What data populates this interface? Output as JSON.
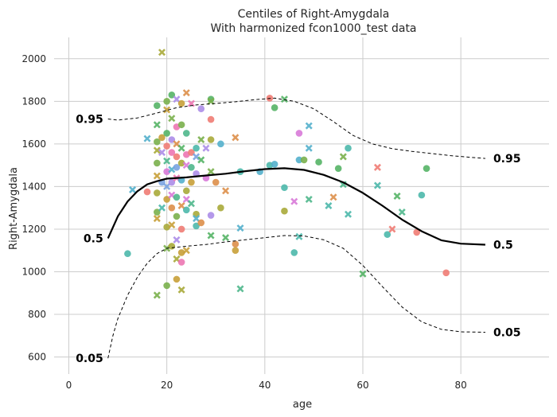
{
  "chart_data": {
    "type": "scatter",
    "title": "Centiles of Right-Amygdala",
    "subtitle": "With harmonized fcon1000_test data",
    "xlabel": "age",
    "ylabel": "Right-Amygdala",
    "xlim": [
      -3,
      98
    ],
    "ylim": [
      520,
      2100
    ],
    "xticks": [
      0,
      20,
      40,
      60,
      80
    ],
    "yticks": [
      600,
      800,
      1000,
      1200,
      1400,
      1600,
      1800,
      2000
    ],
    "grid": true,
    "centiles": [
      {
        "label": "0.95",
        "style": "dashed",
        "points": [
          [
            8,
            1717
          ],
          [
            10,
            1712
          ],
          [
            14,
            1722
          ],
          [
            18,
            1745
          ],
          [
            22,
            1770
          ],
          [
            26,
            1783
          ],
          [
            30,
            1790
          ],
          [
            34,
            1798
          ],
          [
            38,
            1808
          ],
          [
            42,
            1815
          ],
          [
            46,
            1800
          ],
          [
            50,
            1765
          ],
          [
            54,
            1705
          ],
          [
            58,
            1640
          ],
          [
            62,
            1600
          ],
          [
            66,
            1578
          ],
          [
            70,
            1565
          ],
          [
            74,
            1555
          ],
          [
            78,
            1545
          ],
          [
            82,
            1537
          ],
          [
            85,
            1532
          ]
        ]
      },
      {
        "label": "0.5",
        "style": "solid",
        "points": [
          [
            8,
            1157
          ],
          [
            10,
            1260
          ],
          [
            12,
            1330
          ],
          [
            14,
            1378
          ],
          [
            16,
            1410
          ],
          [
            18,
            1425
          ],
          [
            20,
            1437
          ],
          [
            24,
            1443
          ],
          [
            28,
            1452
          ],
          [
            32,
            1460
          ],
          [
            36,
            1472
          ],
          [
            40,
            1482
          ],
          [
            44,
            1486
          ],
          [
            48,
            1478
          ],
          [
            52,
            1455
          ],
          [
            56,
            1420
          ],
          [
            60,
            1370
          ],
          [
            64,
            1310
          ],
          [
            68,
            1245
          ],
          [
            72,
            1190
          ],
          [
            76,
            1148
          ],
          [
            80,
            1132
          ],
          [
            85,
            1127
          ]
        ]
      },
      {
        "label": "0.05",
        "style": "dashed",
        "points": [
          [
            8,
            594
          ],
          [
            9,
            700
          ],
          [
            10,
            780
          ],
          [
            12,
            890
          ],
          [
            14,
            975
          ],
          [
            16,
            1040
          ],
          [
            18,
            1085
          ],
          [
            20,
            1110
          ],
          [
            24,
            1120
          ],
          [
            28,
            1128
          ],
          [
            32,
            1140
          ],
          [
            36,
            1150
          ],
          [
            40,
            1160
          ],
          [
            44,
            1170
          ],
          [
            48,
            1168
          ],
          [
            52,
            1150
          ],
          [
            56,
            1110
          ],
          [
            60,
            1030
          ],
          [
            64,
            930
          ],
          [
            68,
            835
          ],
          [
            72,
            765
          ],
          [
            76,
            730
          ],
          [
            80,
            718
          ],
          [
            85,
            716
          ]
        ]
      }
    ],
    "scatter_colors": [
      "#f07c74",
      "#dd8f4a",
      "#c8a038",
      "#a8aa3a",
      "#7ab04c",
      "#55b466",
      "#4fb78c",
      "#4cb8ab",
      "#54b0cc",
      "#7aa3e0",
      "#ac8de8",
      "#d87ad8",
      "#ec77b3"
    ],
    "points": [
      {
        "x": 12,
        "y": 1085,
        "m": "o",
        "c": 7
      },
      {
        "x": 13,
        "y": 1385,
        "m": "x",
        "c": 8
      },
      {
        "x": 16,
        "y": 1625,
        "m": "x",
        "c": 8
      },
      {
        "x": 16,
        "y": 1375,
        "m": "o",
        "c": 0
      },
      {
        "x": 18,
        "y": 1780,
        "m": "o",
        "c": 5
      },
      {
        "x": 18,
        "y": 1690,
        "m": "x",
        "c": 5
      },
      {
        "x": 18,
        "y": 1610,
        "m": "o",
        "c": 4
      },
      {
        "x": 18,
        "y": 1570,
        "m": "x",
        "c": 3
      },
      {
        "x": 18,
        "y": 1510,
        "m": "o",
        "c": 4
      },
      {
        "x": 18,
        "y": 1450,
        "m": "x",
        "c": 2
      },
      {
        "x": 18,
        "y": 1370,
        "m": "o",
        "c": 3
      },
      {
        "x": 18,
        "y": 1280,
        "m": "o",
        "c": 4
      },
      {
        "x": 18,
        "y": 1250,
        "m": "x",
        "c": 2
      },
      {
        "x": 18,
        "y": 890,
        "m": "x",
        "c": 4
      },
      {
        "x": 19,
        "y": 2030,
        "m": "x",
        "c": 3
      },
      {
        "x": 19,
        "y": 1630,
        "m": "o",
        "c": 2
      },
      {
        "x": 19,
        "y": 1560,
        "m": "x",
        "c": 10
      },
      {
        "x": 19,
        "y": 1420,
        "m": "o",
        "c": 9
      },
      {
        "x": 19,
        "y": 1300,
        "m": "x",
        "c": 7
      },
      {
        "x": 20,
        "y": 1800,
        "m": "o",
        "c": 4
      },
      {
        "x": 20,
        "y": 1760,
        "m": "x",
        "c": 2
      },
      {
        "x": 20,
        "y": 1650,
        "m": "o",
        "c": 5
      },
      {
        "x": 20,
        "y": 1590,
        "m": "o",
        "c": 0
      },
      {
        "x": 20,
        "y": 1520,
        "m": "x",
        "c": 6
      },
      {
        "x": 20,
        "y": 1470,
        "m": "o",
        "c": 11
      },
      {
        "x": 20,
        "y": 1400,
        "m": "x",
        "c": 9
      },
      {
        "x": 20,
        "y": 1340,
        "m": "o",
        "c": 2
      },
      {
        "x": 20,
        "y": 1210,
        "m": "o",
        "c": 3
      },
      {
        "x": 20,
        "y": 1110,
        "m": "x",
        "c": 4
      },
      {
        "x": 20,
        "y": 935,
        "m": "o",
        "c": 4
      },
      {
        "x": 21,
        "y": 1830,
        "m": "o",
        "c": 5
      },
      {
        "x": 21,
        "y": 1720,
        "m": "x",
        "c": 4
      },
      {
        "x": 21,
        "y": 1620,
        "m": "o",
        "c": 10
      },
      {
        "x": 21,
        "y": 1560,
        "m": "o",
        "c": 12
      },
      {
        "x": 21,
        "y": 1480,
        "m": "x",
        "c": 8
      },
      {
        "x": 21,
        "y": 1420,
        "m": "o",
        "c": 10
      },
      {
        "x": 21,
        "y": 1360,
        "m": "x",
        "c": 11
      },
      {
        "x": 21,
        "y": 1300,
        "m": "o",
        "c": 1
      },
      {
        "x": 21,
        "y": 1220,
        "m": "x",
        "c": 2
      },
      {
        "x": 21,
        "y": 1120,
        "m": "o",
        "c": 3
      },
      {
        "x": 22,
        "y": 1810,
        "m": "x",
        "c": 10
      },
      {
        "x": 22,
        "y": 1680,
        "m": "o",
        "c": 12
      },
      {
        "x": 22,
        "y": 1600,
        "m": "x",
        "c": 1
      },
      {
        "x": 22,
        "y": 1540,
        "m": "o",
        "c": 0
      },
      {
        "x": 22,
        "y": 1490,
        "m": "o",
        "c": 9
      },
      {
        "x": 22,
        "y": 1440,
        "m": "x",
        "c": 12
      },
      {
        "x": 22,
        "y": 1350,
        "m": "o",
        "c": 6
      },
      {
        "x": 22,
        "y": 1260,
        "m": "o",
        "c": 4
      },
      {
        "x": 22,
        "y": 1150,
        "m": "x",
        "c": 10
      },
      {
        "x": 22,
        "y": 1060,
        "m": "x",
        "c": 3
      },
      {
        "x": 22,
        "y": 965,
        "m": "o",
        "c": 2
      },
      {
        "x": 23,
        "y": 1790,
        "m": "o",
        "c": 2
      },
      {
        "x": 23,
        "y": 1690,
        "m": "o",
        "c": 4
      },
      {
        "x": 23,
        "y": 1580,
        "m": "x",
        "c": 5
      },
      {
        "x": 23,
        "y": 1510,
        "m": "o",
        "c": 3
      },
      {
        "x": 23,
        "y": 1430,
        "m": "o",
        "c": 8
      },
      {
        "x": 23,
        "y": 1310,
        "m": "x",
        "c": 1
      },
      {
        "x": 23,
        "y": 1200,
        "m": "o",
        "c": 0
      },
      {
        "x": 23,
        "y": 1090,
        "m": "o",
        "c": 2
      },
      {
        "x": 23,
        "y": 1045,
        "m": "o",
        "c": 12
      },
      {
        "x": 23,
        "y": 915,
        "m": "x",
        "c": 3
      },
      {
        "x": 24,
        "y": 1840,
        "m": "x",
        "c": 1
      },
      {
        "x": 24,
        "y": 1650,
        "m": "o",
        "c": 6
      },
      {
        "x": 24,
        "y": 1550,
        "m": "o",
        "c": 12
      },
      {
        "x": 24,
        "y": 1500,
        "m": "x",
        "c": 11
      },
      {
        "x": 24,
        "y": 1380,
        "m": "o",
        "c": 3
      },
      {
        "x": 24,
        "y": 1340,
        "m": "x",
        "c": 11
      },
      {
        "x": 24,
        "y": 1290,
        "m": "o",
        "c": 7
      },
      {
        "x": 24,
        "y": 1100,
        "m": "x",
        "c": 2
      },
      {
        "x": 25,
        "y": 1790,
        "m": "x",
        "c": 12
      },
      {
        "x": 25,
        "y": 1560,
        "m": "o",
        "c": 0
      },
      {
        "x": 25,
        "y": 1490,
        "m": "o",
        "c": 6
      },
      {
        "x": 25,
        "y": 1420,
        "m": "o",
        "c": 2
      },
      {
        "x": 25,
        "y": 1320,
        "m": "x",
        "c": 6
      },
      {
        "x": 26,
        "y": 1580,
        "m": "o",
        "c": 7
      },
      {
        "x": 26,
        "y": 1540,
        "m": "x",
        "c": 9
      },
      {
        "x": 26,
        "y": 1460,
        "m": "o",
        "c": 10
      },
      {
        "x": 26,
        "y": 1270,
        "m": "o",
        "c": 3
      },
      {
        "x": 26,
        "y": 1215,
        "m": "o",
        "c": 7
      },
      {
        "x": 26,
        "y": 1250,
        "m": "x",
        "c": 8
      },
      {
        "x": 27,
        "y": 1765,
        "m": "o",
        "c": 10
      },
      {
        "x": 27,
        "y": 1620,
        "m": "x",
        "c": 4
      },
      {
        "x": 27,
        "y": 1525,
        "m": "x",
        "c": 5
      },
      {
        "x": 27,
        "y": 1230,
        "m": "o",
        "c": 1
      },
      {
        "x": 28,
        "y": 1440,
        "m": "o",
        "c": 11
      },
      {
        "x": 28,
        "y": 1580,
        "m": "x",
        "c": 10
      },
      {
        "x": 29,
        "y": 1810,
        "m": "o",
        "c": 5
      },
      {
        "x": 29,
        "y": 1800,
        "m": "x",
        "c": 4
      },
      {
        "x": 29,
        "y": 1715,
        "m": "o",
        "c": 0
      },
      {
        "x": 29,
        "y": 1620,
        "m": "o",
        "c": 3
      },
      {
        "x": 29,
        "y": 1470,
        "m": "x",
        "c": 4
      },
      {
        "x": 29,
        "y": 1265,
        "m": "o",
        "c": 10
      },
      {
        "x": 29,
        "y": 1170,
        "m": "x",
        "c": 5
      },
      {
        "x": 30,
        "y": 1420,
        "m": "o",
        "c": 1
      },
      {
        "x": 31,
        "y": 1300,
        "m": "o",
        "c": 3
      },
      {
        "x": 31,
        "y": 1600,
        "m": "o",
        "c": 8
      },
      {
        "x": 32,
        "y": 1380,
        "m": "x",
        "c": 1
      },
      {
        "x": 32,
        "y": 1160,
        "m": "x",
        "c": 5
      },
      {
        "x": 34,
        "y": 1630,
        "m": "x",
        "c": 1
      },
      {
        "x": 34,
        "y": 1130,
        "m": "o",
        "c": 1
      },
      {
        "x": 34,
        "y": 1100,
        "m": "o",
        "c": 2
      },
      {
        "x": 35,
        "y": 1470,
        "m": "o",
        "c": 7
      },
      {
        "x": 35,
        "y": 1205,
        "m": "x",
        "c": 8
      },
      {
        "x": 35,
        "y": 920,
        "m": "x",
        "c": 6
      },
      {
        "x": 39,
        "y": 1470,
        "m": "o",
        "c": 8
      },
      {
        "x": 41,
        "y": 1815,
        "m": "o",
        "c": 0
      },
      {
        "x": 41,
        "y": 1500,
        "m": "o",
        "c": 7
      },
      {
        "x": 42,
        "y": 1505,
        "m": "o",
        "c": 8
      },
      {
        "x": 42,
        "y": 1770,
        "m": "o",
        "c": 5
      },
      {
        "x": 44,
        "y": 1810,
        "m": "x",
        "c": 5
      },
      {
        "x": 44,
        "y": 1395,
        "m": "o",
        "c": 7
      },
      {
        "x": 44,
        "y": 1285,
        "m": "o",
        "c": 3
      },
      {
        "x": 46,
        "y": 1330,
        "m": "x",
        "c": 11
      },
      {
        "x": 46,
        "y": 1090,
        "m": "o",
        "c": 7
      },
      {
        "x": 47,
        "y": 1650,
        "m": "o",
        "c": 11
      },
      {
        "x": 47,
        "y": 1525,
        "m": "o",
        "c": 8
      },
      {
        "x": 47,
        "y": 1165,
        "m": "x",
        "c": 7
      },
      {
        "x": 48,
        "y": 1525,
        "m": "o",
        "c": 4
      },
      {
        "x": 49,
        "y": 1685,
        "m": "x",
        "c": 8
      },
      {
        "x": 49,
        "y": 1580,
        "m": "x",
        "c": 8
      },
      {
        "x": 49,
        "y": 1340,
        "m": "x",
        "c": 6
      },
      {
        "x": 51,
        "y": 1515,
        "m": "o",
        "c": 5
      },
      {
        "x": 53,
        "y": 1310,
        "m": "x",
        "c": 7
      },
      {
        "x": 54,
        "y": 1350,
        "m": "x",
        "c": 1
      },
      {
        "x": 55,
        "y": 1485,
        "m": "o",
        "c": 5
      },
      {
        "x": 56,
        "y": 1540,
        "m": "x",
        "c": 4
      },
      {
        "x": 56,
        "y": 1410,
        "m": "x",
        "c": 6
      },
      {
        "x": 57,
        "y": 1580,
        "m": "o",
        "c": 7
      },
      {
        "x": 57,
        "y": 1270,
        "m": "x",
        "c": 7
      },
      {
        "x": 60,
        "y": 990,
        "m": "x",
        "c": 5
      },
      {
        "x": 63,
        "y": 1490,
        "m": "x",
        "c": 0
      },
      {
        "x": 63,
        "y": 1405,
        "m": "x",
        "c": 7
      },
      {
        "x": 65,
        "y": 1175,
        "m": "o",
        "c": 7
      },
      {
        "x": 66,
        "y": 1200,
        "m": "x",
        "c": 0
      },
      {
        "x": 67,
        "y": 1355,
        "m": "x",
        "c": 5
      },
      {
        "x": 68,
        "y": 1280,
        "m": "x",
        "c": 6
      },
      {
        "x": 71,
        "y": 1185,
        "m": "o",
        "c": 0
      },
      {
        "x": 72,
        "y": 1360,
        "m": "o",
        "c": 7
      },
      {
        "x": 73,
        "y": 1485,
        "m": "o",
        "c": 5
      },
      {
        "x": 77,
        "y": 995,
        "m": "o",
        "c": 0
      }
    ]
  }
}
